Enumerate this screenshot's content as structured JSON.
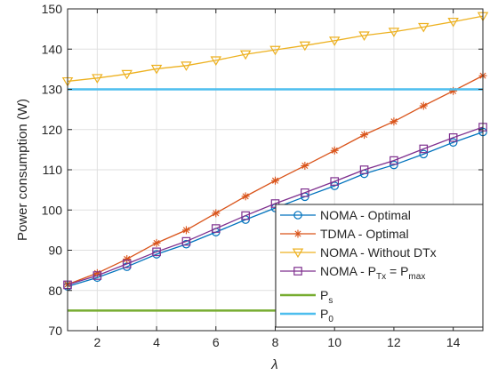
{
  "chart_data": {
    "type": "line",
    "title": "",
    "xlabel": "λ",
    "ylabel": "Power consumption (W)",
    "xlim": [
      1,
      15
    ],
    "ylim": [
      70,
      150
    ],
    "xticks": [
      2,
      4,
      6,
      8,
      10,
      12,
      14
    ],
    "yticks": [
      70,
      80,
      90,
      100,
      110,
      120,
      130,
      140,
      150
    ],
    "grid": true,
    "legend_position": "bottom-right",
    "x": [
      1,
      2,
      3,
      4,
      5,
      6,
      7,
      8,
      9,
      10,
      11,
      12,
      13,
      14,
      15
    ],
    "series": [
      {
        "name": "NOMA - Optimal",
        "color": "#0072BD",
        "marker": "circle",
        "values": [
          81.0,
          83.2,
          85.9,
          89.0,
          91.5,
          94.5,
          97.6,
          100.5,
          103.3,
          106.0,
          109.0,
          111.2,
          113.9,
          116.8,
          119.4
        ]
      },
      {
        "name": "TDMA - Optimal",
        "color": "#D95319",
        "marker": "asterisk",
        "values": [
          81.5,
          84.3,
          87.8,
          91.8,
          95.0,
          99.2,
          103.4,
          107.3,
          111.0,
          114.8,
          118.7,
          122.0,
          125.9,
          129.6,
          133.4
        ]
      },
      {
        "name": "NOMA - Without DTx",
        "color": "#EDB120",
        "marker": "triangle-down",
        "values": [
          132.0,
          132.8,
          133.8,
          135.1,
          135.9,
          137.2,
          138.7,
          139.8,
          140.9,
          142.1,
          143.4,
          144.3,
          145.5,
          146.8,
          148.2
        ]
      },
      {
        "name_parts": [
          "NOMA - P",
          "Tx",
          " = P",
          "max"
        ],
        "color": "#7E2F8E",
        "marker": "square",
        "values": [
          81.4,
          83.7,
          86.6,
          89.6,
          92.2,
          95.4,
          98.6,
          101.6,
          104.3,
          107.1,
          110.0,
          112.3,
          115.2,
          118.0,
          120.6
        ]
      },
      {
        "name_parts": [
          "P",
          "s"
        ],
        "color": "#77AC30",
        "marker": "none",
        "values": [
          75,
          75,
          75,
          75,
          75,
          75,
          75,
          75,
          75,
          75,
          75,
          75,
          75,
          75,
          75
        ]
      },
      {
        "name_parts": [
          "P",
          "0"
        ],
        "color": "#4DBEEE",
        "marker": "none",
        "values": [
          130,
          130,
          130,
          130,
          130,
          130,
          130,
          130,
          130,
          130,
          130,
          130,
          130,
          130,
          130
        ]
      }
    ]
  }
}
